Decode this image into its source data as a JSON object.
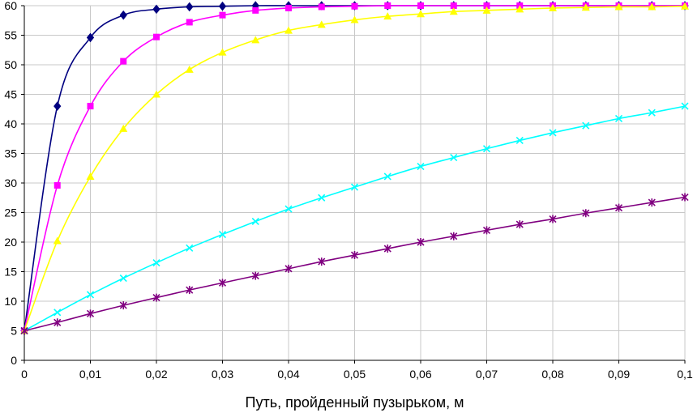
{
  "chart_data": {
    "type": "line",
    "title": "",
    "xlabel": "Путь, пройденный пузырьком, м",
    "ylabel": "",
    "xlim": [
      0,
      0.1
    ],
    "ylim": [
      0,
      60
    ],
    "x_ticks": [
      0,
      0.01,
      0.02,
      0.03,
      0.04,
      0.05,
      0.06,
      0.07,
      0.08,
      0.09,
      0.1
    ],
    "x_tick_labels": [
      "0",
      "0,01",
      "0,02",
      "0,03",
      "0,04",
      "0,05",
      "0,06",
      "0,07",
      "0,08",
      "0,09",
      "0,1"
    ],
    "y_ticks": [
      0,
      5,
      10,
      15,
      20,
      25,
      30,
      35,
      40,
      45,
      50,
      55,
      60
    ],
    "y_tick_labels": [
      "0",
      "5",
      "10",
      "15",
      "20",
      "25",
      "30",
      "35",
      "40",
      "45",
      "50",
      "55",
      "60"
    ],
    "grid": true,
    "legend": "none",
    "series": [
      {
        "color": "#000080",
        "marker": "diamond",
        "x": [
          0,
          0.005,
          0.01,
          0.015,
          0.02,
          0.025,
          0.03,
          0.035,
          0.04,
          0.045,
          0.05,
          0.055,
          0.06,
          0.065,
          0.07,
          0.075,
          0.08,
          0.085,
          0.09,
          0.095,
          0.1
        ],
        "y": [
          5,
          43,
          54.6,
          58.4,
          59.4,
          59.8,
          59.9,
          60,
          60,
          60,
          60,
          60,
          60,
          60,
          60,
          60,
          60,
          60,
          60,
          60,
          60
        ]
      },
      {
        "color": "#ff00ff",
        "marker": "square",
        "x": [
          0,
          0.005,
          0.01,
          0.015,
          0.02,
          0.025,
          0.03,
          0.035,
          0.04,
          0.045,
          0.05,
          0.055,
          0.06,
          0.065,
          0.07,
          0.075,
          0.08,
          0.085,
          0.09,
          0.095,
          0.1
        ],
        "y": [
          5,
          29.6,
          43,
          50.6,
          54.7,
          57.2,
          58.4,
          59.2,
          59.6,
          59.8,
          59.9,
          60,
          60,
          60,
          60,
          60,
          60,
          60,
          60,
          60,
          60
        ]
      },
      {
        "color": "#ffff00",
        "marker": "triangle",
        "x": [
          0,
          0.005,
          0.01,
          0.015,
          0.02,
          0.025,
          0.03,
          0.035,
          0.04,
          0.045,
          0.05,
          0.055,
          0.06,
          0.065,
          0.07,
          0.075,
          0.08,
          0.085,
          0.09,
          0.095,
          0.1
        ],
        "y": [
          5,
          20.2,
          31.1,
          39.2,
          45,
          49.2,
          52.1,
          54.2,
          55.8,
          56.8,
          57.6,
          58.2,
          58.6,
          59,
          59.2,
          59.4,
          59.6,
          59.7,
          59.8,
          59.8,
          59.9
        ]
      },
      {
        "color": "#00ffff",
        "marker": "x",
        "x": [
          0,
          0.005,
          0.01,
          0.015,
          0.02,
          0.025,
          0.03,
          0.035,
          0.04,
          0.045,
          0.05,
          0.055,
          0.06,
          0.065,
          0.07,
          0.075,
          0.08,
          0.085,
          0.09,
          0.095,
          0.1
        ],
        "y": [
          5,
          8.1,
          11.1,
          13.9,
          16.5,
          19,
          21.3,
          23.5,
          25.6,
          27.5,
          29.3,
          31.1,
          32.8,
          34.3,
          35.8,
          37.2,
          38.5,
          39.7,
          40.9,
          41.9,
          43
        ]
      },
      {
        "color": "#800080",
        "marker": "asterisk",
        "x": [
          0,
          0.005,
          0.01,
          0.015,
          0.02,
          0.025,
          0.03,
          0.035,
          0.04,
          0.045,
          0.05,
          0.055,
          0.06,
          0.065,
          0.07,
          0.075,
          0.08,
          0.085,
          0.09,
          0.095,
          0.1
        ],
        "y": [
          5,
          6.4,
          7.9,
          9.3,
          10.6,
          11.9,
          13.1,
          14.3,
          15.5,
          16.7,
          17.8,
          18.9,
          20,
          21,
          22,
          23,
          23.9,
          24.9,
          25.8,
          26.7,
          27.6
        ]
      }
    ]
  }
}
